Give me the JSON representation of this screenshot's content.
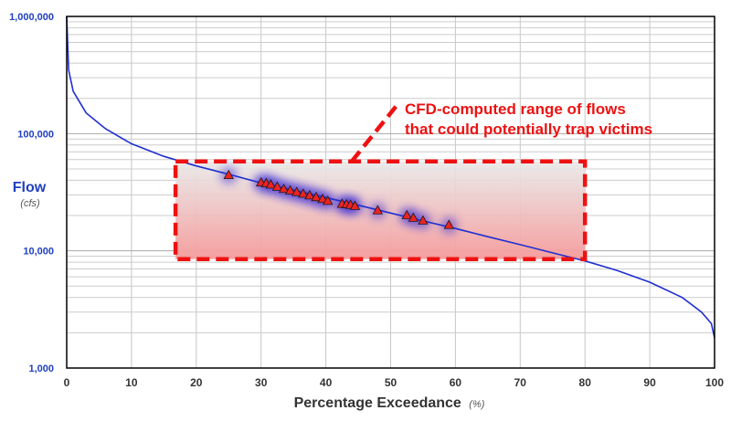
{
  "chart_data": {
    "type": "line",
    "xlabel": "Percentage Exceedance",
    "xlabel_unit": "(%)",
    "ylabel": "Flow",
    "ylabel_unit": "(cfs)",
    "x_ticks": [
      "0",
      "10",
      "20",
      "30",
      "40",
      "50",
      "60",
      "70",
      "80",
      "90",
      "100"
    ],
    "y_ticks": [
      "1,000",
      "10,000",
      "100,000",
      "1,000,000"
    ],
    "xlim": [
      0,
      100
    ],
    "ylim": [
      1000,
      1000000
    ],
    "y_scale": "log",
    "grid": true,
    "series": [
      {
        "color": "#1f2fd0",
        "points": [
          [
            0,
            1000000
          ],
          [
            0.3,
            350000
          ],
          [
            1,
            230000
          ],
          [
            3,
            150000
          ],
          [
            6,
            110000
          ],
          [
            10,
            82000
          ],
          [
            15,
            64000
          ],
          [
            20,
            53000
          ],
          [
            25,
            45000
          ],
          [
            30,
            38000
          ],
          [
            35,
            33000
          ],
          [
            40,
            28500
          ],
          [
            45,
            24500
          ],
          [
            50,
            21000
          ],
          [
            55,
            18000
          ],
          [
            60,
            15500
          ],
          [
            65,
            13200
          ],
          [
            70,
            11300
          ],
          [
            75,
            9600
          ],
          [
            80,
            8200
          ],
          [
            85,
            6800
          ],
          [
            90,
            5400
          ],
          [
            95,
            4000
          ],
          [
            98,
            3000
          ],
          [
            99.5,
            2400
          ],
          [
            100,
            1800
          ]
        ]
      },
      {
        "marker": "triangle",
        "color": "#ee2222",
        "points": [
          [
            25,
            44000
          ],
          [
            30,
            38000
          ],
          [
            30.8,
            37500
          ],
          [
            31.5,
            36500
          ],
          [
            32.5,
            35000
          ],
          [
            33.5,
            33500
          ],
          [
            34.5,
            32500
          ],
          [
            35.5,
            31500
          ],
          [
            36.5,
            30500
          ],
          [
            37.5,
            29500
          ],
          [
            38.5,
            28500
          ],
          [
            39.5,
            27500
          ],
          [
            40.3,
            26500
          ],
          [
            42.5,
            25000
          ],
          [
            43.2,
            24800
          ],
          [
            43.8,
            24500
          ],
          [
            44.5,
            24000
          ],
          [
            48,
            22000
          ],
          [
            52.5,
            20000
          ],
          [
            53.5,
            19000
          ],
          [
            55,
            18000
          ],
          [
            59,
            16500
          ]
        ]
      }
    ],
    "highlight_box": {
      "x_range": [
        16.8,
        80
      ],
      "y_range": [
        8500,
        58000
      ],
      "color": "#ee1111"
    },
    "annotation": {
      "lines": [
        "CFD-computed range of flows",
        "that could potentially trap victims"
      ],
      "color": "#ee1111"
    }
  }
}
